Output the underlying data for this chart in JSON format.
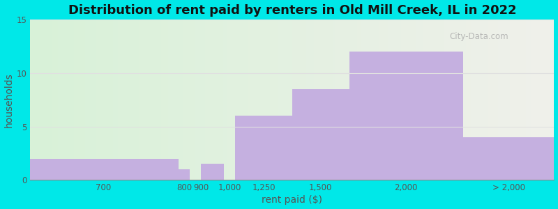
{
  "title": "Distribution of rent paid by renters in Old Mill Creek, IL in 2022",
  "xlabel": "rent paid ($)",
  "ylabel": "households",
  "bar_lefts": [
    100,
    750,
    850,
    1000,
    1250,
    1500,
    2000
  ],
  "bar_rights": [
    750,
    800,
    950,
    1250,
    1500,
    2000,
    2400
  ],
  "bar_heights": [
    2,
    1,
    1.5,
    6,
    8.5,
    12,
    4
  ],
  "bar_color": "#c5b0e0",
  "bar_edgecolor": "#c5b0e0",
  "xlim": [
    100,
    2400
  ],
  "ylim": [
    0,
    15
  ],
  "yticks": [
    0,
    5,
    10,
    15
  ],
  "xtick_positions": [
    420,
    775,
    850,
    975,
    1125,
    1375,
    1750,
    2200
  ],
  "xtick_labels": [
    "700",
    "800",
    "900",
    "1,000",
    "1,250",
    "1,500",
    "2,000",
    "> 2,000"
  ],
  "background_outer": "#00e8e8",
  "background_inner_left": "#d8f2d8",
  "background_inner_right": "#f0f0eb",
  "title_fontsize": 13,
  "axis_label_fontsize": 10,
  "tick_fontsize": 8.5,
  "watermark": "City-Data.com"
}
